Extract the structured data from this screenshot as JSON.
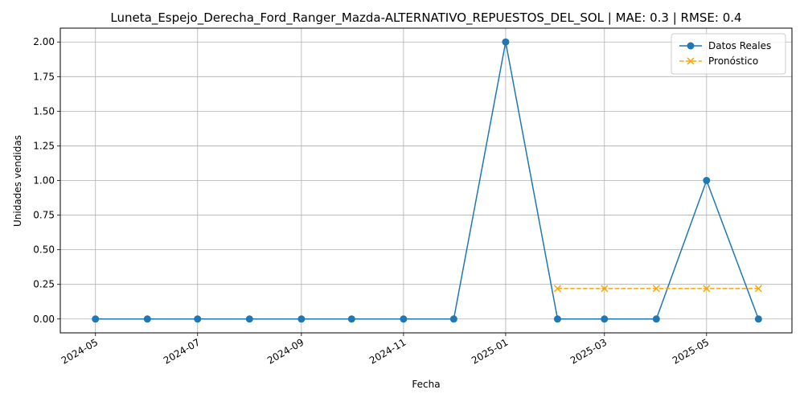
{
  "chart_data": {
    "type": "line",
    "title": "Luneta_Espejo_Derecha_Ford_Ranger_Mazda-ALTERNATIVO_REPUESTOS_DEL_SOL | MAE: 0.3 | RMSE: 0.4",
    "xlabel": "Fecha",
    "ylabel": "Unidades vendidas",
    "x_tick_labels": [
      "2024-05",
      "2024-07",
      "2024-09",
      "2024-11",
      "2025-01",
      "2025-03",
      "2025-05"
    ],
    "x_ticks": [
      "2024-05-01",
      "2024-07-01",
      "2024-09-01",
      "2024-11-01",
      "2025-01-01",
      "2025-03-01",
      "2025-05-01"
    ],
    "xlim": [
      "2024-04-10",
      "2025-06-21"
    ],
    "y_ticks": [
      0.0,
      0.25,
      0.5,
      0.75,
      1.0,
      1.25,
      1.5,
      1.75,
      2.0
    ],
    "y_tick_labels": [
      "0.00",
      "0.25",
      "0.50",
      "0.75",
      "1.00",
      "1.25",
      "1.50",
      "1.75",
      "2.00"
    ],
    "ylim": [
      -0.1,
      2.1
    ],
    "grid": true,
    "legend_position": "top-right",
    "series": [
      {
        "name": "Datos Reales",
        "color": "#1f77b4",
        "line_style": "solid",
        "marker": "circle",
        "x": [
          "2024-05-01",
          "2024-06-01",
          "2024-07-01",
          "2024-08-01",
          "2024-09-01",
          "2024-10-01",
          "2024-11-01",
          "2024-12-01",
          "2025-01-01",
          "2025-02-01",
          "2025-03-01",
          "2025-04-01",
          "2025-05-01",
          "2025-06-01"
        ],
        "values": [
          0,
          0,
          0,
          0,
          0,
          0,
          0,
          0,
          2,
          0,
          0,
          0,
          1,
          0
        ]
      },
      {
        "name": "Pronóstico",
        "color": "#ffa500",
        "line_style": "dashed",
        "marker": "x",
        "x": [
          "2025-02-01",
          "2025-03-01",
          "2025-04-01",
          "2025-05-01",
          "2025-06-01"
        ],
        "values": [
          0.22,
          0.22,
          0.22,
          0.22,
          0.22
        ]
      }
    ]
  }
}
